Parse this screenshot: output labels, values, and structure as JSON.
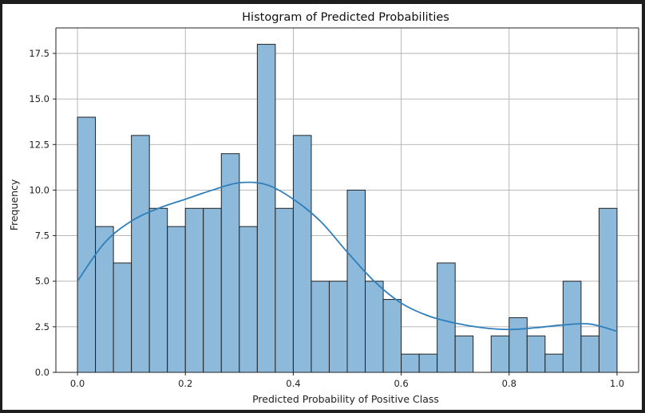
{
  "chart_data": {
    "type": "bar",
    "title": "Histogram of Predicted Probabilities",
    "xlabel": "Predicted Probability of Positive Class",
    "ylabel": "Frequency",
    "xlim": [
      -0.04,
      1.04
    ],
    "ylim": [
      0,
      18.9
    ],
    "x_ticks": [
      0.0,
      0.2,
      0.4,
      0.6,
      0.8,
      1.0
    ],
    "x_tick_labels": [
      "0.0",
      "0.2",
      "0.4",
      "0.6",
      "0.8",
      "1.0"
    ],
    "y_ticks": [
      0,
      2.5,
      5,
      7.5,
      10,
      12.5,
      15,
      17.5
    ],
    "y_tick_labels": [
      "0.0",
      "2.5",
      "5.0",
      "7.5",
      "10.0",
      "12.5",
      "15.0",
      "17.5"
    ],
    "grid": true,
    "bin_range": [
      0.0,
      1.0
    ],
    "counts": [
      14,
      8,
      6,
      13,
      9,
      8,
      9,
      9,
      12,
      8,
      18,
      9,
      13,
      5,
      5,
      10,
      5,
      4,
      1,
      1,
      6,
      2,
      0,
      2,
      3,
      2,
      1,
      5,
      2,
      9
    ],
    "kde": {
      "x": [
        0.0,
        0.05,
        0.1,
        0.15,
        0.2,
        0.25,
        0.3,
        0.35,
        0.4,
        0.45,
        0.5,
        0.55,
        0.6,
        0.65,
        0.7,
        0.75,
        0.8,
        0.85,
        0.9,
        0.95,
        1.0
      ],
      "y": [
        5.0,
        7.1,
        8.3,
        9.0,
        9.5,
        10.0,
        10.4,
        10.3,
        9.5,
        8.3,
        6.6,
        5.0,
        3.8,
        3.1,
        2.7,
        2.45,
        2.35,
        2.45,
        2.6,
        2.65,
        2.25
      ]
    },
    "colors": {
      "bar_fill": "#8db9da",
      "bar_edge": "#222222",
      "kde_line": "#2e7fbc",
      "grid": "#b0b0b0"
    }
  }
}
